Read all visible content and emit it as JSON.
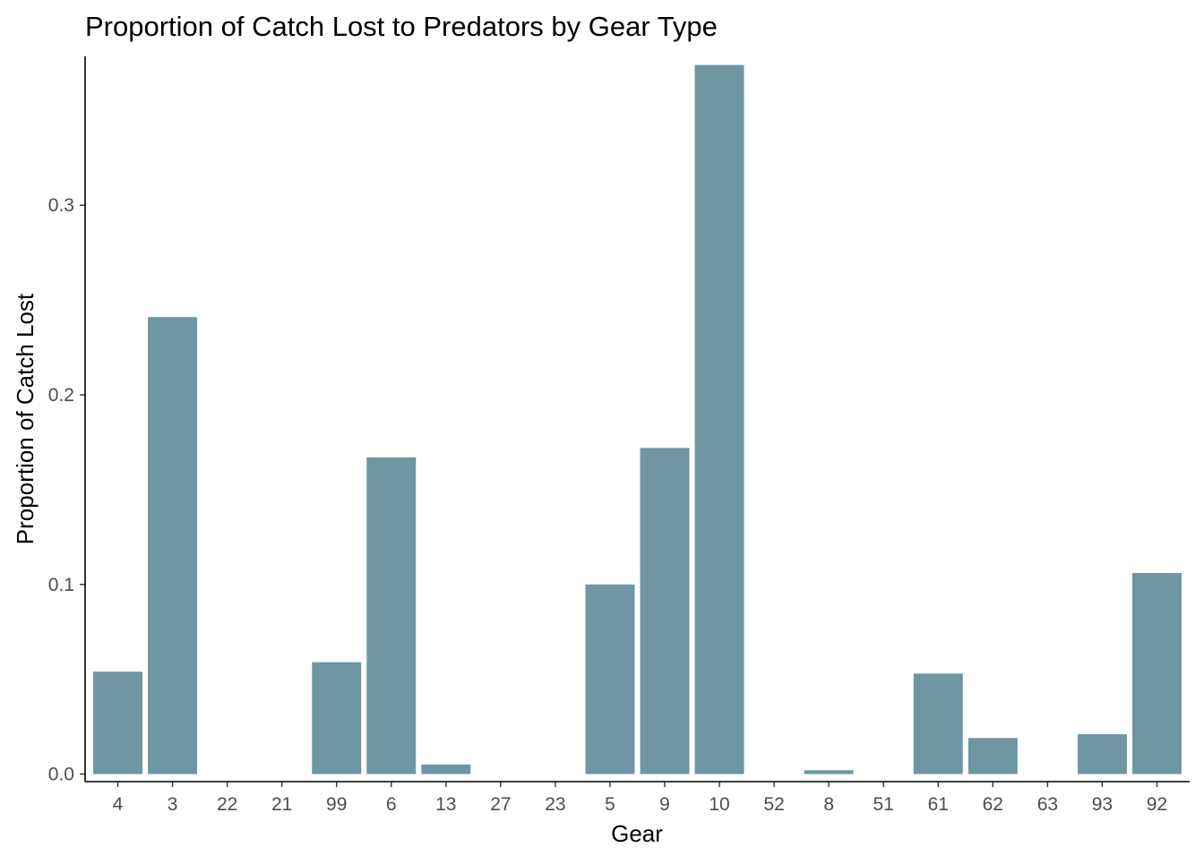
{
  "chart_data": {
    "type": "bar",
    "title": "Proportion of Catch Lost to Predators by Gear Type",
    "xlabel": "Gear",
    "ylabel": "Proportion of Catch Lost",
    "categories": [
      "4",
      "3",
      "22",
      "21",
      "99",
      "6",
      "13",
      "27",
      "23",
      "5",
      "9",
      "10",
      "52",
      "8",
      "51",
      "61",
      "62",
      "63",
      "93",
      "92"
    ],
    "values": [
      0.054,
      0.241,
      0.0,
      0.0,
      0.059,
      0.167,
      0.005,
      0.0,
      0.0,
      0.1,
      0.172,
      0.374,
      0.0,
      0.002,
      0.0,
      0.053,
      0.019,
      0.0,
      0.021,
      0.106
    ],
    "ylim": [
      -0.004,
      0.3785
    ],
    "yticks": [
      0.0,
      0.1,
      0.2,
      0.3
    ],
    "ytick_labels": [
      "0.0",
      "0.1",
      "0.2",
      "0.3"
    ],
    "bar_color": "#6e96a3",
    "grid": false,
    "legend": "none"
  }
}
